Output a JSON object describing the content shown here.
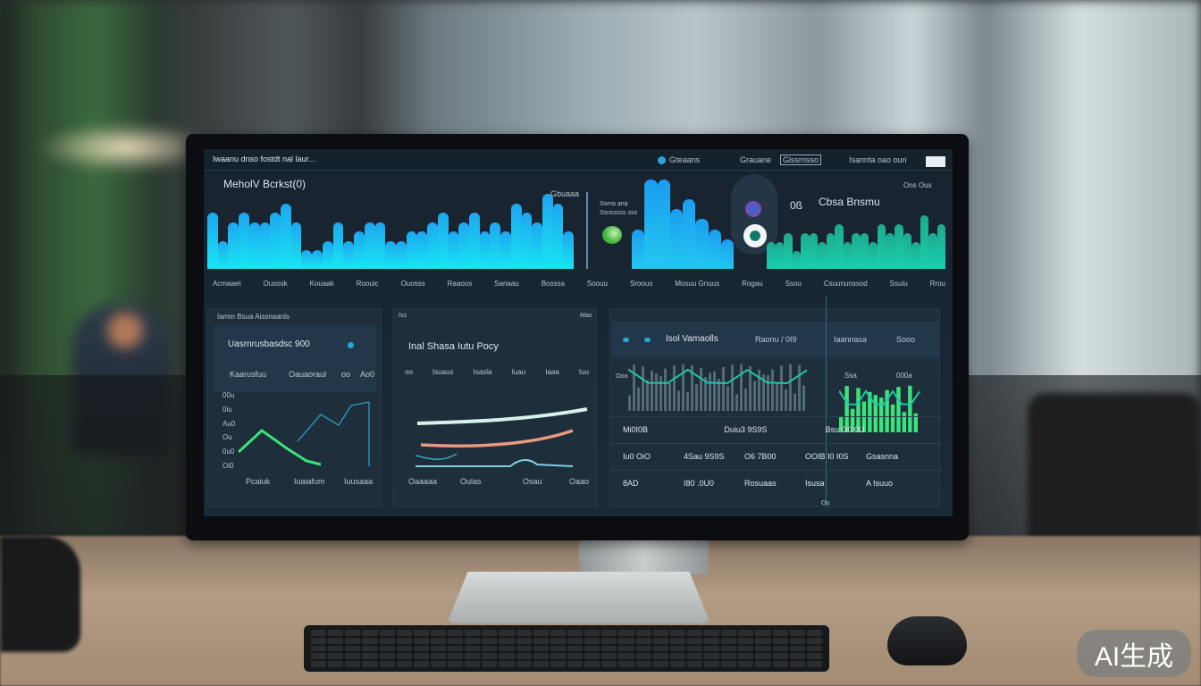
{
  "watermark": "AI生成",
  "dashboard": {
    "header": {
      "title": "Iwaanu dnso fostdt nal laur...",
      "status": "Gteaans",
      "items": [
        "Grauane",
        "Glssrnsso",
        "Isannta oao oun"
      ]
    },
    "main_title": "MeholV Bcrkst(0)",
    "chart_label": "Gbuaaa",
    "side_note": [
      "Ssma ana",
      "Ssnsssss sss"
    ],
    "value_big": "0ß",
    "value_label": "Cbsa Bnsmu",
    "corner": "Ons Ous",
    "top_labels": [
      "Acmaaet",
      "Ousosk",
      "Kouaak",
      "Roouic",
      "Ouosss",
      "Raaoos",
      "Sanaau",
      "Bosssa",
      "Soouu",
      "Sroous",
      "Mosuu Gnuus",
      "Rogau",
      "Ssou",
      "Csuununssod",
      "Ssuiu",
      "Rrou"
    ],
    "top_bars": [
      6,
      3,
      5,
      6,
      5,
      5,
      6,
      7,
      5,
      2,
      2,
      3,
      5,
      3,
      4,
      5,
      5,
      3,
      3,
      4,
      4,
      5,
      6,
      4,
      5,
      6,
      4,
      5,
      4,
      7,
      6,
      5,
      8,
      7,
      4
    ],
    "mid_bars": [
      4,
      9,
      9,
      6,
      7,
      5,
      4,
      3
    ],
    "green_bars": [
      3,
      3,
      4,
      2,
      4,
      4,
      3,
      4,
      5,
      3,
      4,
      4,
      3,
      5,
      4,
      5,
      4,
      3,
      6,
      4,
      5
    ],
    "panel1": {
      "header": "Iamm Bsua Aissnaanls",
      "title": "Uasrnrusbasdsc 900",
      "row": [
        "Kaarusfuu",
        "Oauaoraul",
        "oo",
        "Ao0"
      ],
      "yticks": [
        "00u",
        "0iu",
        "Au0",
        "Ou",
        "0u0",
        "Oi0"
      ],
      "footer": [
        "Pcaiuk",
        "Iuaiafum",
        "Iuusaaa"
      ]
    },
    "panel2": {
      "header_left": "Iss",
      "header_right": "Mao",
      "title": "Inal Shasa Iutu Pocy",
      "cols": [
        "oo",
        "Isuaus",
        "Isasla",
        "Iuau",
        "Iaaa",
        "Iuu"
      ],
      "footer": [
        "Oaaaaa",
        "Oulas",
        "Osau",
        "Oaao"
      ]
    },
    "panel3": {
      "title": "Isol Vamaolls",
      "stat1": "Raonu / 0I9",
      "stat2": "Iaannasa",
      "stat3": "Sooo",
      "axis": [
        "Ooa",
        "Ssa",
        "000a"
      ],
      "rows": [
        [
          "Mi0I0B",
          "Duiu3 9S9S",
          "Bsu 0i0 0U"
        ],
        [
          "Iu0 OiO",
          "4Sau 9S9S",
          "O6 7B00",
          "OOIB I0 I0S",
          "Gsasnna"
        ],
        [
          "8AD",
          "I80 .0U0",
          "Rosuaas",
          "Isusa",
          "A Isuuo"
        ]
      ],
      "foot": "Ou"
    }
  },
  "colors": {
    "cyan": "#22c8f0",
    "green": "#3ce27a",
    "teal": "#1fc7a6",
    "bg": "#17232e"
  }
}
